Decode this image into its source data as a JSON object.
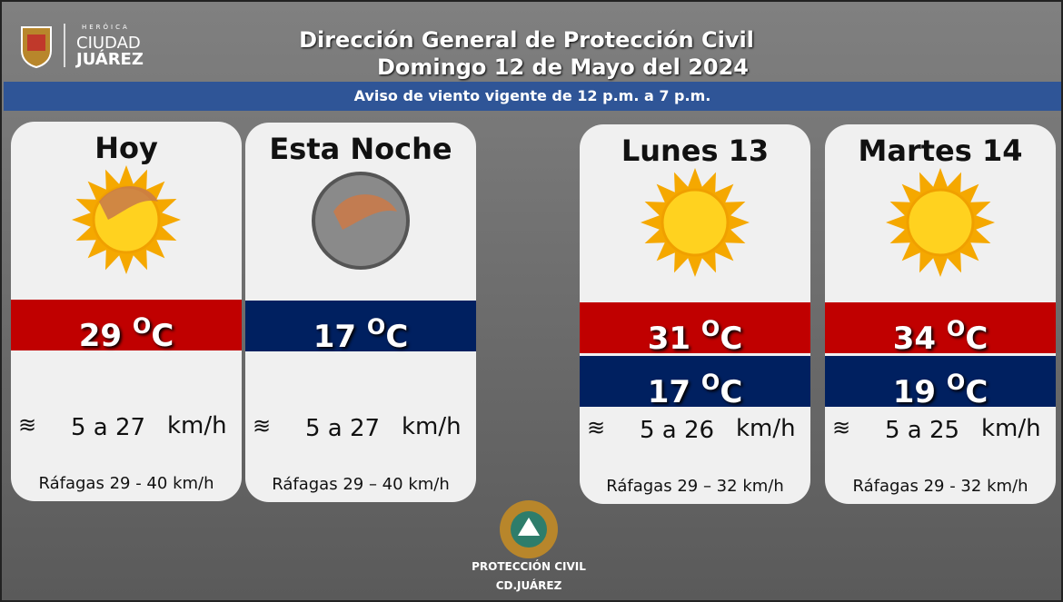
{
  "header": {
    "logo_top": "HERÓICA",
    "logo_city": "CIUDAD",
    "logo_name": "JUÁREZ",
    "title": "Dirección General de Protección Civil",
    "date": "Domingo 12 de Mayo del 2024",
    "notice": "Aviso de viento vigente de 12 p.m. a 7 p.m."
  },
  "units": {
    "degree": "O",
    "temp": "C",
    "speed": "km/h",
    "gusts_label": "Ráfagas"
  },
  "cards": [
    {
      "title": "Hoy",
      "high": "29",
      "wind": "5 a 27",
      "gusts": "29 - 40"
    },
    {
      "title": "Esta Noche",
      "low": "17",
      "wind": "5 a 27",
      "gusts": "29 – 40"
    },
    {
      "title": "Lunes 13",
      "high": "31",
      "low": "17",
      "wind": "5 a 26",
      "gusts": "29 – 32"
    },
    {
      "title": "Martes 14",
      "high": "34",
      "low": "19",
      "wind": "5 a 25",
      "gusts": "29 - 32"
    }
  ],
  "footer": {
    "org": "PROTECCIÓN CIVIL",
    "city": "CD.JUÁREZ"
  }
}
